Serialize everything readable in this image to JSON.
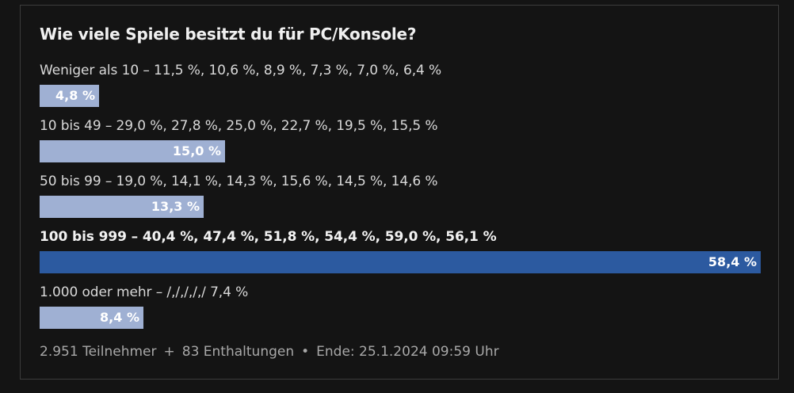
{
  "poll": {
    "title": "Wie viele Spiele besitzt du für PC/Konsole?",
    "options": [
      {
        "label": "Weniger als 10 – 11,5 %, 10,6 %, 8,9 %, 7,3 %, 7,0 %, 6,4 %",
        "value_text": "4,8 %",
        "percent": 4.8,
        "selected": false
      },
      {
        "label": "10 bis 49 – 29,0 %, 27,8 %, 25,0 %, 22,7 %, 19,5 %, 15,5 %",
        "value_text": "15,0 %",
        "percent": 15.0,
        "selected": false
      },
      {
        "label": "50 bis 99 – 19,0 %, 14,1 %, 14,3 %, 15,6 %, 14,5 %, 14,6 %",
        "value_text": "13,3 %",
        "percent": 13.3,
        "selected": false
      },
      {
        "label": "100 bis 999 – 40,4 %, 47,4 %, 51,8 %, 54,4 %, 59,0 %, 56,1 %",
        "value_text": "58,4 %",
        "percent": 58.4,
        "selected": true
      },
      {
        "label": "1.000 oder mehr – /,/,/,/,/ 7,4 %",
        "value_text": "8,4 %",
        "percent": 8.4,
        "selected": false
      }
    ],
    "footer": {
      "participants": "2.951 Teilnehmer",
      "plus": "+",
      "abstentions": "83 Enthaltungen",
      "dot": "•",
      "end": "Ende: 25.1.2024 09:59 Uhr"
    }
  },
  "colors": {
    "background": "#141414",
    "bar_default": "#9fb0d3",
    "bar_selected": "#2c5aa0",
    "border": "#3c3c3c"
  }
}
